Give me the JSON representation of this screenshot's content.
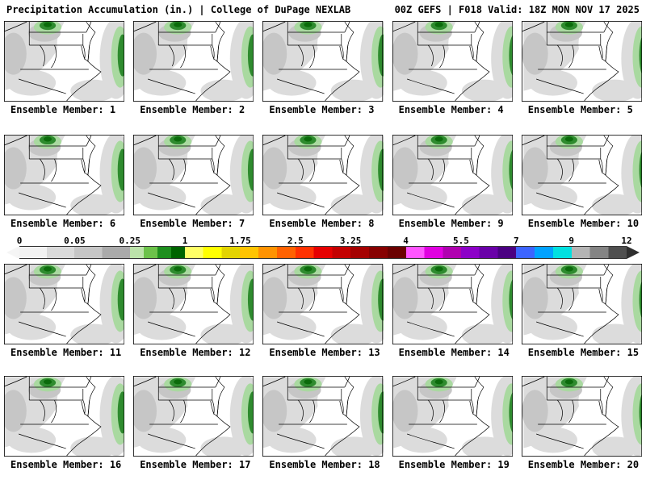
{
  "header": {
    "left": "Precipitation Accumulation (in.) | College of DuPage NEXLAB",
    "right": "00Z GEFS | F018 Valid: 18Z MON NOV 17 2025"
  },
  "colorbar": {
    "ticks": [
      "0",
      "0.05",
      "0.25",
      "1",
      "1.75",
      "2.5",
      "3.25",
      "4",
      "5.5",
      "7",
      "9",
      "12"
    ],
    "segments": [
      {
        "colors": [
          "#f2f2f2",
          "#dadada"
        ]
      },
      {
        "colors": [
          "#c6c6c6",
          "#aaaaaa"
        ]
      },
      {
        "colors": [
          "#bce3aa",
          "#6cc24a",
          "#1e8f1e",
          "#006400"
        ]
      },
      {
        "colors": [
          "#ffff66",
          "#ffff00",
          "#e3d400"
        ]
      },
      {
        "colors": [
          "#ffc400",
          "#ff9300",
          "#ff6200"
        ]
      },
      {
        "colors": [
          "#ff3200",
          "#e60000",
          "#c40000"
        ]
      },
      {
        "colors": [
          "#a50000",
          "#870000",
          "#6b0000"
        ]
      },
      {
        "colors": [
          "#ff55ff",
          "#e000e0",
          "#b000b0"
        ]
      },
      {
        "colors": [
          "#8d00c8",
          "#6a00a8",
          "#4b0082"
        ]
      },
      {
        "colors": [
          "#3c64ff",
          "#00a2ff",
          "#00e0e0"
        ]
      },
      {
        "colors": [
          "#b4b4b4",
          "#848484",
          "#4f4f4f"
        ]
      }
    ],
    "left_arrow_color": "#f5f5f5",
    "right_arrow_color": "#2f2f2f"
  },
  "map_colors": {
    "light_gray": "#dcdcdc",
    "medium_gray": "#c6c6c6",
    "light_green": "#a9d9a0",
    "green": "#2e8b2e",
    "dark_green": "#0b6b0b"
  },
  "members": [
    {
      "label": "Ensemble Member: 1"
    },
    {
      "label": "Ensemble Member: 2"
    },
    {
      "label": "Ensemble Member: 3"
    },
    {
      "label": "Ensemble Member: 4"
    },
    {
      "label": "Ensemble Member: 5"
    },
    {
      "label": "Ensemble Member: 6"
    },
    {
      "label": "Ensemble Member: 7"
    },
    {
      "label": "Ensemble Member: 8"
    },
    {
      "label": "Ensemble Member: 9"
    },
    {
      "label": "Ensemble Member: 10"
    },
    {
      "label": "Ensemble Member: 11"
    },
    {
      "label": "Ensemble Member: 12"
    },
    {
      "label": "Ensemble Member: 13"
    },
    {
      "label": "Ensemble Member: 14"
    },
    {
      "label": "Ensemble Member: 15"
    },
    {
      "label": "Ensemble Member: 16"
    },
    {
      "label": "Ensemble Member: 17"
    },
    {
      "label": "Ensemble Member: 18"
    },
    {
      "label": "Ensemble Member: 19"
    },
    {
      "label": "Ensemble Member: 20"
    }
  ]
}
